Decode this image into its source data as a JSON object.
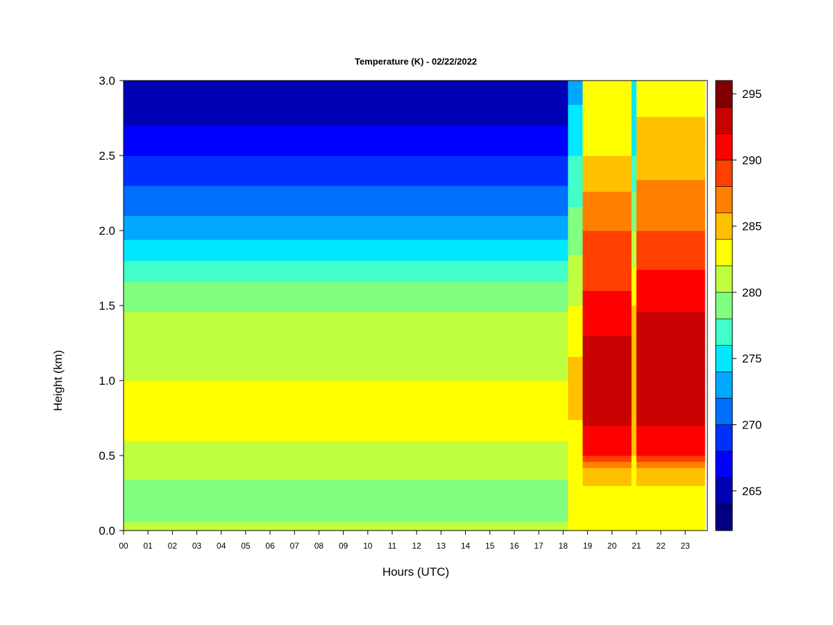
{
  "chart_data": {
    "type": "heatmap",
    "title": "Temperature (K) - 02/22/2022",
    "xlabel": "Hours (UTC)",
    "ylabel": "Height (km)",
    "x_ticks": [
      "00",
      "01",
      "02",
      "03",
      "04",
      "05",
      "06",
      "07",
      "08",
      "09",
      "10",
      "11",
      "12",
      "13",
      "14",
      "15",
      "16",
      "17",
      "18",
      "19",
      "20",
      "21",
      "22",
      "23"
    ],
    "y_ticks": [
      "0.0",
      "0.5",
      "1.0",
      "1.5",
      "2.0",
      "2.5",
      "3.0"
    ],
    "xlim": [
      0,
      24
    ],
    "ylim": [
      0,
      3.0
    ],
    "colorbar": {
      "ticks": [
        "265",
        "270",
        "275",
        "280",
        "285",
        "290",
        "295"
      ],
      "range": [
        262,
        296
      ],
      "levels": [
        262,
        264,
        266,
        268,
        270,
        272,
        274,
        276,
        278,
        280,
        282,
        284,
        286,
        288,
        290,
        292,
        294,
        296
      ],
      "colors": [
        "#000080",
        "#0000b4",
        "#0000ff",
        "#0030ff",
        "#0070ff",
        "#00a8ff",
        "#00e8ff",
        "#40ffc8",
        "#80ff80",
        "#c0ff40",
        "#ffff00",
        "#ffc000",
        "#ff8000",
        "#ff4000",
        "#ff0000",
        "#c80000",
        "#800000"
      ]
    },
    "profiles": [
      {
        "time_range": [
          0,
          18.2
        ],
        "height_km": [
          0.0,
          0.2,
          0.4,
          0.6,
          0.8,
          1.0,
          1.3,
          1.6,
          1.8,
          2.0,
          2.2,
          2.5,
          2.8,
          3.0
        ],
        "temperature_K": [
          280.5,
          278.5,
          280.5,
          282,
          282.5,
          282,
          281,
          279,
          276,
          273,
          271,
          268,
          265,
          264
        ]
      },
      {
        "time_range": [
          18.2,
          18.8
        ],
        "height_km": [
          0.0,
          0.3,
          0.5,
          1.0,
          1.5,
          2.0,
          2.5,
          3.0
        ],
        "temperature_K": [
          283,
          282,
          283,
          285,
          282,
          279,
          276,
          273
        ]
      },
      {
        "time_range": [
          18.8,
          20.8
        ],
        "height_km": [
          0.0,
          0.2,
          0.4,
          0.5,
          0.7,
          1.0,
          1.3,
          1.6,
          2.0,
          2.5,
          3.0
        ],
        "temperature_K": [
          284,
          283,
          285,
          290,
          292,
          294,
          292,
          290,
          288,
          284,
          282
        ]
      },
      {
        "time_range": [
          20.8,
          21.0
        ],
        "height_km": [
          0.0,
          0.5,
          1.0,
          1.5,
          2.0,
          2.5,
          3.0
        ],
        "temperature_K": [
          283,
          284,
          285,
          284,
          280,
          276,
          274
        ]
      },
      {
        "time_range": [
          21.0,
          23.8
        ],
        "height_km": [
          0.0,
          0.2,
          0.4,
          0.5,
          0.7,
          1.0,
          1.3,
          1.6,
          2.0,
          2.5,
          3.0
        ],
        "temperature_K": [
          284,
          283,
          285,
          290,
          292,
          294,
          293,
          291,
          288,
          285,
          283
        ]
      }
    ]
  }
}
